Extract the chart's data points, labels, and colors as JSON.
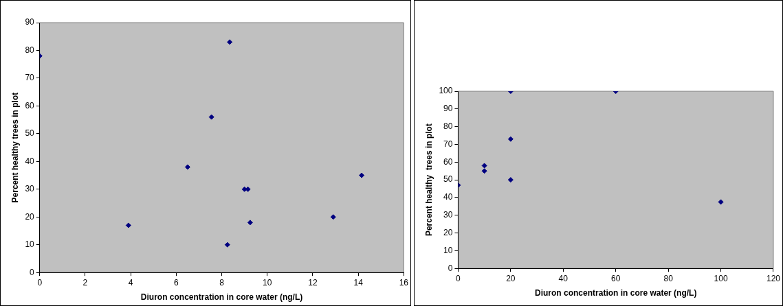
{
  "chart_data": [
    {
      "type": "scatter",
      "xlabel": "Diuron concentration in core water (ng/L)",
      "ylabel": "Percent healthy trees in plot",
      "marker": "diamond",
      "grid": false,
      "x": [
        0,
        3.9,
        6.5,
        7.55,
        8.25,
        8.35,
        9.0,
        9.15,
        9.25,
        12.9,
        14.15
      ],
      "series": [
        {
          "color": "#000080",
          "values": [
            78,
            17,
            38,
            56,
            10,
            83,
            30,
            30,
            18,
            20,
            35
          ]
        }
      ],
      "xlim": [
        0,
        16
      ],
      "xticks": [
        0,
        2,
        4,
        6,
        8,
        10,
        12,
        14,
        16
      ],
      "ylim": [
        0,
        90
      ],
      "yticks": [
        0,
        10,
        20,
        30,
        40,
        50,
        60,
        70,
        80,
        90
      ]
    },
    {
      "type": "scatter",
      "xlabel": "Diuron concentration in core water (ng/L)",
      "ylabel": "Percent healthy  trees in plot",
      "marker": "diamond",
      "grid": false,
      "x": [
        0,
        10,
        10,
        20,
        20,
        20,
        60,
        100
      ],
      "series": [
        {
          "color": "#000080",
          "values": [
            47,
            58,
            55,
            100,
            73,
            50,
            100,
            37.5
          ]
        }
      ],
      "xlim": [
        0,
        120
      ],
      "xticks": [
        0,
        20,
        40,
        60,
        80,
        100,
        120
      ],
      "ylim": [
        0,
        100
      ],
      "yticks": [
        0,
        10,
        20,
        30,
        40,
        50,
        60,
        70,
        80,
        90,
        100
      ]
    }
  ]
}
